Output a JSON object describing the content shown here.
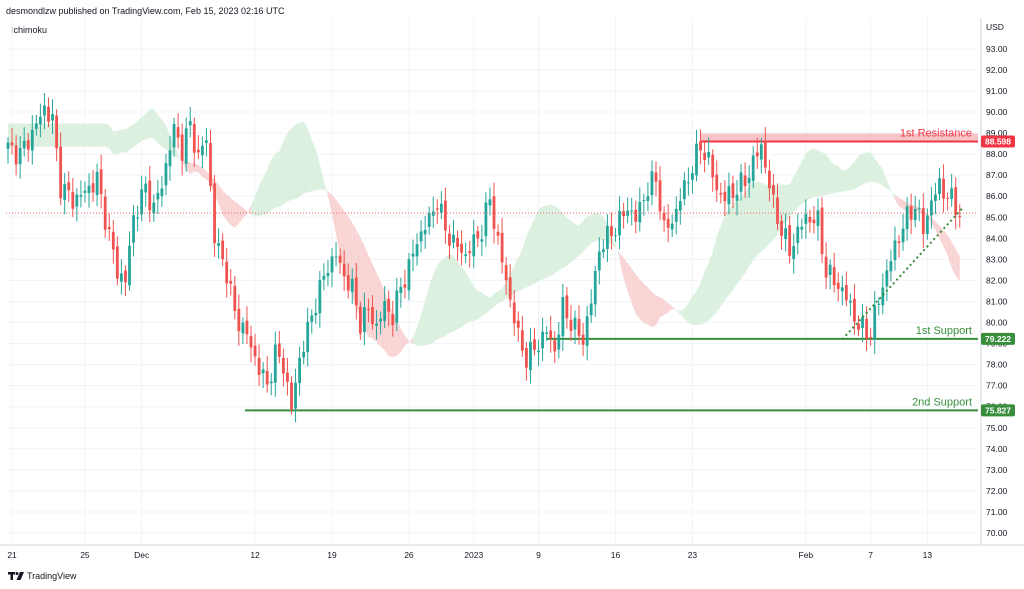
{
  "header": {
    "publisher": "desmondlzw published on TradingView.com, Feb 15, 2023 02:16 UTC",
    "indicator": "Ichimoku"
  },
  "footer": {
    "brand": "TradingView"
  },
  "colors": {
    "bull": "#26a69a",
    "bear": "#ef5350",
    "resistance": "#f23645",
    "support": "#388e3c",
    "cloud_bear": "#f9d4d4",
    "cloud_bull": "#dcf0e0",
    "grid": "#f0f3fa"
  },
  "chart_data": {
    "type": "candlestick",
    "y_unit": "USD",
    "ylim": [
      69.5,
      94.0
    ],
    "y_ticks": [
      "70.00",
      "71.00",
      "72.00",
      "73.00",
      "74.00",
      "75.00",
      "76.00",
      "77.00",
      "78.00",
      "79.00",
      "80.00",
      "81.00",
      "82.00",
      "83.00",
      "84.00",
      "85.00",
      "86.00",
      "87.00",
      "88.00",
      "89.00",
      "90.00",
      "91.00",
      "92.00",
      "93.00"
    ],
    "x_ticks": [
      "21",
      "25",
      "Dec",
      "12",
      "19",
      "26",
      "2023",
      "9",
      "16",
      "23",
      "Feb",
      "7",
      "13"
    ],
    "close_points": [
      [
        0,
        88.3
      ],
      [
        3,
        88.0
      ],
      [
        6,
        89.0
      ],
      [
        9,
        90.2
      ],
      [
        11,
        89.6
      ],
      [
        13,
        86.5
      ],
      [
        16,
        85.8
      ],
      [
        19,
        86.2
      ],
      [
        22,
        86.8
      ],
      [
        24,
        85.0
      ],
      [
        27,
        82.4
      ],
      [
        29,
        82.0
      ],
      [
        31,
        85.0
      ],
      [
        34,
        86.4
      ],
      [
        36,
        85.4
      ],
      [
        38,
        86.6
      ],
      [
        41,
        89.2
      ],
      [
        43,
        88.2
      ],
      [
        45,
        89.4
      ],
      [
        47,
        87.8
      ],
      [
        49,
        88.8
      ],
      [
        51,
        84.0
      ],
      [
        54,
        82.4
      ],
      [
        56,
        80.4
      ],
      [
        59,
        79.4
      ],
      [
        62,
        77.8
      ],
      [
        64,
        77.0
      ],
      [
        66,
        78.5
      ],
      [
        68,
        78.0
      ],
      [
        70,
        75.9
      ],
      [
        72,
        78.3
      ],
      [
        74,
        79.6
      ],
      [
        76,
        81.0
      ],
      [
        79,
        82.7
      ],
      [
        81,
        83.2
      ],
      [
        83,
        82.2
      ],
      [
        85,
        81.6
      ],
      [
        87,
        80.0
      ],
      [
        89,
        80.6
      ],
      [
        91,
        79.8
      ],
      [
        93,
        80.8
      ],
      [
        95,
        80.3
      ],
      [
        97,
        81.7
      ],
      [
        99,
        82.6
      ],
      [
        101,
        83.9
      ],
      [
        104,
        84.9
      ],
      [
        106,
        85.8
      ],
      [
        108,
        84.4
      ],
      [
        110,
        83.8
      ],
      [
        113,
        83.2
      ],
      [
        115,
        83.8
      ],
      [
        117,
        84.4
      ],
      [
        119,
        85.9
      ],
      [
        121,
        83.8
      ],
      [
        124,
        81.1
      ],
      [
        126,
        79.3
      ],
      [
        128,
        78.3
      ],
      [
        131,
        79.0
      ],
      [
        133,
        79.6
      ],
      [
        135,
        78.7
      ],
      [
        137,
        80.7
      ],
      [
        140,
        79.7
      ],
      [
        142,
        79.2
      ],
      [
        144,
        81.0
      ],
      [
        146,
        83.5
      ],
      [
        149,
        84.3
      ],
      [
        151,
        84.8
      ],
      [
        153,
        85.5
      ],
      [
        155,
        84.9
      ],
      [
        157,
        86.0
      ],
      [
        160,
        86.9
      ],
      [
        162,
        84.4
      ],
      [
        164,
        84.8
      ],
      [
        166,
        85.9
      ],
      [
        168,
        86.9
      ],
      [
        171,
        88.4
      ],
      [
        173,
        87.7
      ],
      [
        175,
        86.3
      ],
      [
        177,
        85.9
      ],
      [
        179,
        86.2
      ],
      [
        182,
        86.7
      ],
      [
        184,
        87.6
      ],
      [
        186,
        88.4
      ],
      [
        189,
        85.6
      ],
      [
        191,
        84.4
      ],
      [
        193,
        83.4
      ],
      [
        195,
        84.3
      ],
      [
        197,
        85.0
      ],
      [
        200,
        84.8
      ],
      [
        202,
        82.4
      ],
      [
        204,
        82.0
      ],
      [
        206,
        81.5
      ],
      [
        208,
        80.8
      ],
      [
        210,
        79.8
      ],
      [
        213,
        79.5
      ],
      [
        215,
        81.1
      ],
      [
        217,
        82.4
      ],
      [
        219,
        83.6
      ],
      [
        221,
        84.6
      ],
      [
        224,
        85.6
      ],
      [
        226,
        84.4
      ],
      [
        228,
        85.8
      ],
      [
        230,
        86.5
      ],
      [
        233,
        85.8
      ],
      [
        235,
        85.2
      ]
    ],
    "levels": [
      {
        "name": "1st Resistance",
        "value": 88.598,
        "label": "88.598",
        "color": "#f23645"
      },
      {
        "name": "1st Support",
        "value": 79.222,
        "label": "79.222",
        "color": "#388e3c"
      },
      {
        "name": "2nd Support",
        "value": 75.827,
        "label": "75.827",
        "color": "#388e3c"
      }
    ],
    "last_price": 85.2,
    "trendline": {
      "from": [
        79.2
      ],
      "to": [
        85.5
      ]
    },
    "grid": true
  }
}
